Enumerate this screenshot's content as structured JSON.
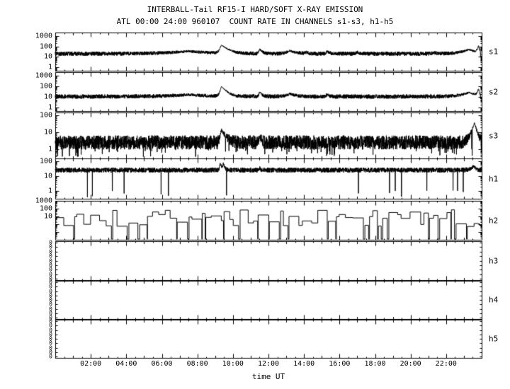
{
  "title": "INTERBALL-Tail RF15-I HARD/SOFT X-RAY EMISSION",
  "subtitle": "ATL 00:00 24:00 960107  COUNT RATE IN CHANNELS s1-s3, h1-h5",
  "xlabel": "time UT",
  "colors": {
    "fg": "#000000",
    "bg": "#ffffff"
  },
  "chart_data": {
    "type": "line",
    "x_unit": "hours UT",
    "x_range": [
      0,
      24
    ],
    "grid": false,
    "legend": "none",
    "peaks_key": "[t_hours, amplitude_counts, rise_h, fall_h]",
    "x_ticks": [
      {
        "h": 2,
        "label": "02:00"
      },
      {
        "h": 4,
        "label": "04:00"
      },
      {
        "h": 6,
        "label": "06:00"
      },
      {
        "h": 8,
        "label": "08:00"
      },
      {
        "h": 10,
        "label": "10:00"
      },
      {
        "h": 12,
        "label": "12:00"
      },
      {
        "h": 14,
        "label": "14:00"
      },
      {
        "h": 16,
        "label": "16:00"
      },
      {
        "h": 18,
        "label": "18:00"
      },
      {
        "h": 20,
        "label": "20:00"
      },
      {
        "h": 22,
        "label": "22:00"
      }
    ],
    "panels": [
      {
        "name": "s1",
        "style": "noisy",
        "ylog": true,
        "ylim": [
          0.5,
          2000
        ],
        "yticks": [
          1000,
          100,
          10,
          1
        ],
        "baseline": 20,
        "noise": 0.45,
        "dropout_prob": 0,
        "peaks": [
          [
            7.5,
            14,
            1.2,
            1.2
          ],
          [
            9.35,
            110,
            0.08,
            0.3
          ],
          [
            11.5,
            38,
            0.04,
            0.12
          ],
          [
            13.2,
            18,
            0.2,
            0.35
          ],
          [
            14.1,
            8,
            0.05,
            0.1
          ],
          [
            15.3,
            14,
            0.04,
            0.12
          ],
          [
            17.0,
            8,
            0.1,
            0.15
          ],
          [
            21.3,
            6,
            0.1,
            0.2
          ],
          [
            23.3,
            30,
            0.4,
            0.3
          ],
          [
            23.82,
            90,
            0.06,
            0.05
          ]
        ],
        "end_dip": [
          23.93,
          0.45
        ]
      },
      {
        "name": "s2",
        "style": "noisy",
        "ylog": true,
        "ylim": [
          0.5,
          2000
        ],
        "yticks": [
          1000,
          100,
          10,
          1
        ],
        "baseline": 11,
        "noise": 0.45,
        "dropout_prob": 0,
        "peaks": [
          [
            7.5,
            5,
            1.2,
            1.2
          ],
          [
            9.35,
            85,
            0.06,
            0.22
          ],
          [
            11.5,
            22,
            0.035,
            0.1
          ],
          [
            13.2,
            9,
            0.2,
            0.3
          ],
          [
            15.3,
            7,
            0.04,
            0.1
          ],
          [
            23.3,
            15,
            0.4,
            0.3
          ],
          [
            23.82,
            45,
            0.06,
            0.05
          ]
        ],
        "end_dip": [
          23.93,
          0.5
        ]
      },
      {
        "name": "s3",
        "style": "noisy",
        "ylog": true,
        "ylim": [
          0.3,
          150
        ],
        "yticks": [
          100,
          10,
          1
        ],
        "baseline": 2.6,
        "noise": 0.95,
        "dropout_prob": 0.03,
        "peaks": [
          [
            9.35,
            12,
            0.05,
            0.18
          ],
          [
            11.5,
            3,
            0.03,
            0.08
          ],
          [
            23.6,
            35,
            0.12,
            0.1
          ]
        ]
      },
      {
        "name": "h1",
        "style": "noisy",
        "ylog": true,
        "ylim": [
          0.3,
          150
        ],
        "yticks": [
          100,
          10,
          1
        ],
        "baseline": 25,
        "noise": 0.38,
        "dropout_prob": 0.004,
        "peaks": [
          [
            9.28,
            55,
            0.025,
            0.07
          ],
          [
            9.45,
            45,
            0.025,
            0.07
          ],
          [
            11.5,
            10,
            0.03,
            0.06
          ],
          [
            23.55,
            20,
            0.15,
            0.1
          ]
        ]
      },
      {
        "name": "h2",
        "style": "step",
        "ylog": true,
        "ylim": [
          0.01,
          1000
        ],
        "yticks": [
          1000,
          100,
          10
        ],
        "dropout_prob": 0.42,
        "step_level_log_min": -0.3,
        "step_level_log_max": 1.9,
        "step_dur_min": 0.12,
        "step_dur_max": 0.6
      },
      {
        "name": "h3",
        "style": "empty",
        "yticks": [],
        "zero_tick_count": 9
      },
      {
        "name": "h4",
        "style": "empty",
        "yticks": [],
        "zero_tick_count": 9
      },
      {
        "name": "h5",
        "style": "empty",
        "yticks": [],
        "zero_tick_count": 9
      }
    ]
  }
}
